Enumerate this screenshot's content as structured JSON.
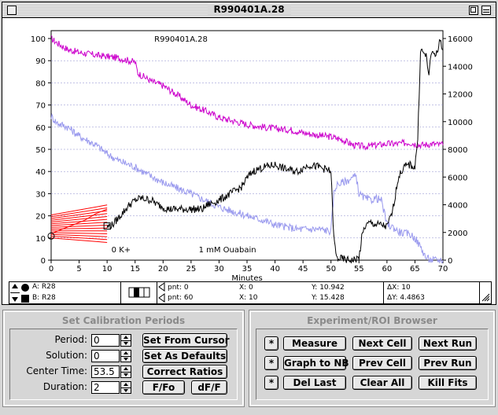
{
  "window": {
    "title": "R990401A.28"
  },
  "colors": {
    "magenta_series": "#cc00cc",
    "lavender_series": "#9999ee",
    "black_series": "#000000",
    "red_series": "#ff0000",
    "grid": "#8888cc"
  },
  "chart_data": {
    "type": "line",
    "title": "R990401A.28",
    "xlabel": "Minutes",
    "ylabel": "",
    "xlim": [
      0,
      70
    ],
    "ylim": [
      0,
      100
    ],
    "y2lim": [
      0,
      16000
    ],
    "x_ticks": [
      "0",
      "5",
      "10",
      "15",
      "20",
      "25",
      "30",
      "35",
      "40",
      "45",
      "50",
      "55",
      "60",
      "65",
      "70"
    ],
    "y_ticks": [
      "0",
      "10",
      "20",
      "30",
      "40",
      "50",
      "60",
      "70",
      "80",
      "90",
      "100"
    ],
    "y2_ticks": [
      "0",
      "2000",
      "4000",
      "6000",
      "8000",
      "10000",
      "12000",
      "14000",
      "16000"
    ],
    "grid": true,
    "annotations": [
      {
        "text": "0 K+",
        "x": 12.5,
        "y": 5
      },
      {
        "text": "1 mM Ouabain",
        "x": 31.5,
        "y": 5
      }
    ],
    "series": [
      {
        "axis": "right",
        "color": "#cc00cc",
        "points": [
          [
            0,
            16000
          ],
          [
            1,
            15700
          ],
          [
            3,
            15200
          ],
          [
            5,
            15000
          ],
          [
            8,
            14800
          ],
          [
            10,
            14700
          ],
          [
            12,
            14600
          ],
          [
            15,
            14300
          ],
          [
            15.5,
            13500
          ],
          [
            18,
            12900
          ],
          [
            20,
            12600
          ],
          [
            23,
            11800
          ],
          [
            25,
            11200
          ],
          [
            28,
            10700
          ],
          [
            30,
            10300
          ],
          [
            33,
            10000
          ],
          [
            35,
            9800
          ],
          [
            38,
            9600
          ],
          [
            40,
            9500
          ],
          [
            43,
            9400
          ],
          [
            45,
            9200
          ],
          [
            48,
            9000
          ],
          [
            50,
            8900
          ],
          [
            52,
            8700
          ],
          [
            54,
            8300
          ],
          [
            56,
            8200
          ],
          [
            58,
            8300
          ],
          [
            60,
            8400
          ],
          [
            62,
            8400
          ],
          [
            64,
            8500
          ],
          [
            66,
            8300
          ],
          [
            68,
            8400
          ],
          [
            70,
            8300
          ]
        ]
      },
      {
        "axis": "left",
        "color": "#9999ee",
        "points": [
          [
            0,
            65
          ],
          [
            1,
            62
          ],
          [
            3,
            60
          ],
          [
            5,
            56
          ],
          [
            8,
            52
          ],
          [
            10,
            48
          ],
          [
            12,
            45
          ],
          [
            15,
            42
          ],
          [
            17,
            39
          ],
          [
            20,
            35
          ],
          [
            25,
            30
          ],
          [
            30,
            24
          ],
          [
            35,
            20
          ],
          [
            38,
            18
          ],
          [
            40,
            16
          ],
          [
            44,
            14
          ],
          [
            48,
            14
          ],
          [
            50,
            13
          ],
          [
            50.5,
            30
          ],
          [
            51,
            34
          ],
          [
            53,
            36
          ],
          [
            54.5,
            38
          ],
          [
            55,
            30
          ],
          [
            56,
            28
          ],
          [
            57,
            27
          ],
          [
            58,
            28
          ],
          [
            59,
            27
          ],
          [
            60,
            16
          ],
          [
            61,
            15
          ],
          [
            62,
            13
          ],
          [
            63,
            12
          ],
          [
            64,
            12
          ],
          [
            65,
            10
          ],
          [
            66,
            6
          ],
          [
            67,
            1
          ],
          [
            68,
            0
          ],
          [
            70,
            0
          ]
        ]
      },
      {
        "axis": "left",
        "color": "#000000",
        "points": [
          [
            10,
            15
          ],
          [
            11,
            16
          ],
          [
            12,
            19
          ],
          [
            13,
            22
          ],
          [
            14,
            25
          ],
          [
            15,
            27
          ],
          [
            16,
            28
          ],
          [
            18,
            27
          ],
          [
            19,
            25
          ],
          [
            21,
            23
          ],
          [
            24,
            23
          ],
          [
            27,
            23
          ],
          [
            28,
            25
          ],
          [
            30,
            27
          ],
          [
            32,
            30
          ],
          [
            34,
            33
          ],
          [
            35,
            37
          ],
          [
            36,
            40
          ],
          [
            38,
            42
          ],
          [
            40,
            43
          ],
          [
            42,
            41
          ],
          [
            44,
            40
          ],
          [
            46,
            43
          ],
          [
            48,
            42
          ],
          [
            49,
            41
          ],
          [
            50,
            40
          ],
          [
            50.5,
            10
          ],
          [
            51,
            1
          ],
          [
            53,
            0
          ],
          [
            54,
            0
          ],
          [
            55,
            1
          ],
          [
            55.5,
            10
          ],
          [
            56,
            15
          ],
          [
            57,
            17
          ],
          [
            58,
            16
          ],
          [
            59,
            16
          ],
          [
            60,
            15
          ],
          [
            61,
            22
          ],
          [
            62,
            37
          ],
          [
            63,
            42
          ],
          [
            64,
            43
          ],
          [
            65,
            42
          ],
          [
            65.5,
            55
          ],
          [
            66,
            95
          ],
          [
            67,
            92
          ],
          [
            67.5,
            84
          ],
          [
            68,
            94
          ],
          [
            69,
            93
          ],
          [
            69.5,
            100
          ],
          [
            70,
            95
          ]
        ]
      },
      {
        "axis": "left",
        "color": "#ff0000",
        "points": [
          [
            0,
            12
          ],
          [
            2,
            14
          ],
          [
            4,
            16
          ],
          [
            6,
            18
          ],
          [
            8,
            21
          ],
          [
            10,
            23
          ]
        ]
      }
    ]
  },
  "status": {
    "row_a_label": "A: R28",
    "row_b_label": "B: R28",
    "pnt_a": "pnt: 0",
    "pnt_b": "pnt: 60",
    "x_a": "X: 0",
    "x_b": "X: 10",
    "y_a": "Y: 10.942",
    "y_b": "Y: 15.428",
    "dx": "ΔX: 10",
    "dy": "ΔY: 4.4863"
  },
  "calibration": {
    "title": "Set Calibration Periods",
    "period_label": "Period:",
    "period_value": "0",
    "solution_label": "Solution:",
    "solution_value": "0",
    "center_label": "Center Time:",
    "center_value": "53.5",
    "duration_label": "Duration:",
    "duration_value": "2",
    "btn_set_from_cursor": "Set From Cursor",
    "btn_set_defaults": "Set As Defaults",
    "btn_correct_ratios": "Correct Ratios",
    "btn_ffo": "F/Fo",
    "btn_dff": "dF/F"
  },
  "browser": {
    "title": "Experiment/ROI Browser",
    "star": "*",
    "btn_measure": "Measure",
    "btn_next_cell": "Next Cell",
    "btn_next_run": "Next Run",
    "btn_graph_nb": "Graph to NB",
    "btn_prev_cell": "Prev Cell",
    "btn_prev_run": "Prev Run",
    "btn_del_last": "Del Last",
    "btn_clear_all": "Clear All",
    "btn_kill_fits": "Kill Fits"
  }
}
